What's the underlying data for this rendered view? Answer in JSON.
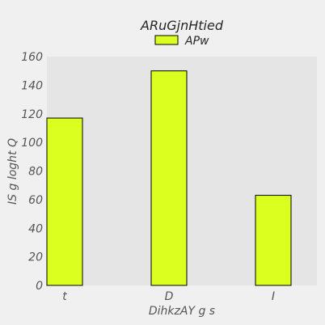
{
  "chart_data": {
    "type": "bar",
    "title": "ARuGjnHtied",
    "xlabel": "DihkzAY g s",
    "ylabel": "IS g loght Q",
    "categories": [
      "t",
      "D",
      "I"
    ],
    "series": [
      {
        "name": "APw",
        "values": [
          117,
          150,
          63
        ],
        "color": "#dbff1f"
      }
    ],
    "ylim": [
      0,
      160
    ],
    "yticks": [
      0,
      20,
      40,
      60,
      80,
      100,
      120,
      140,
      160
    ],
    "grid": false,
    "legend": "top-center",
    "plot_background": "#e5e5e5",
    "figure_background": "#f0f0f0",
    "bar_edge_color": "#000000"
  }
}
